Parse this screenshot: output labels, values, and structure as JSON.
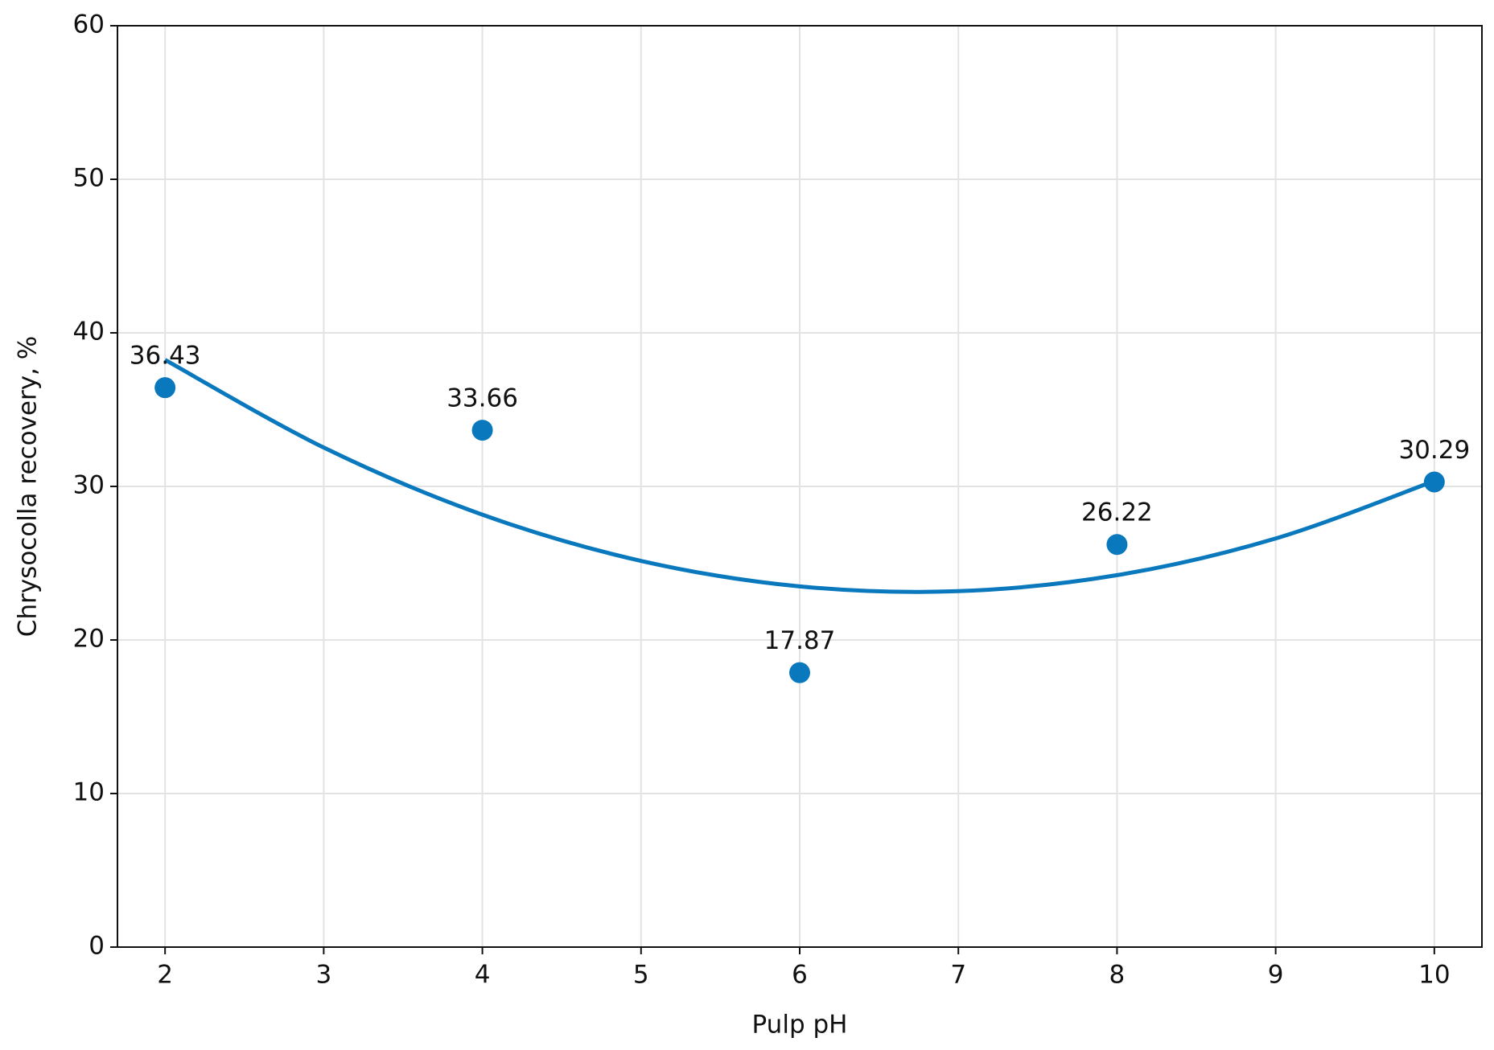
{
  "chart_data": {
    "type": "scatter",
    "x_label": "Pulp pH",
    "y_label": "Chrysocolla recovery, %",
    "xlim": [
      1.7,
      10.3
    ],
    "ylim": [
      0,
      60
    ],
    "xticks": [
      2,
      3,
      4,
      5,
      6,
      7,
      8,
      9,
      10
    ],
    "yticks": [
      0,
      10,
      20,
      30,
      40,
      50,
      60
    ],
    "grid": true,
    "series": [
      {
        "type": "scatter",
        "color": "#0a78bd",
        "show_labels": true,
        "x": [
          2,
          4,
          6,
          8,
          10
        ],
        "values": [
          36.43,
          33.66,
          17.87,
          26.22,
          30.29
        ]
      },
      {
        "type": "line",
        "color": "#0a78bd",
        "x": [
          2,
          3,
          4,
          5,
          6,
          7,
          8,
          9,
          10
        ],
        "values": [
          38.24,
          32.53,
          28.16,
          25.15,
          23.49,
          23.18,
          24.22,
          26.61,
          30.35
        ]
      }
    ]
  }
}
